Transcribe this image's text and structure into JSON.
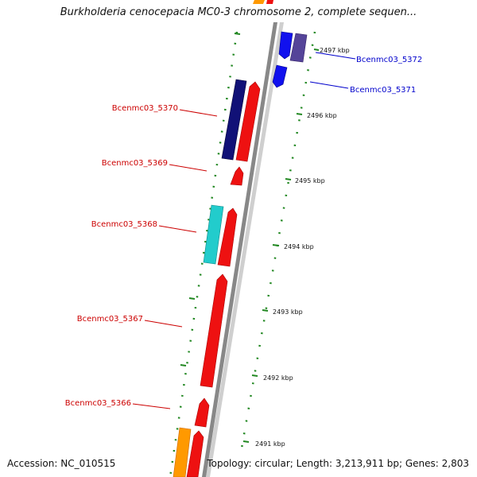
{
  "header": {
    "title": "Burkholderia cenocepacia MC0-3 chromosome 2, complete sequen..."
  },
  "footer": {
    "accession": "Accession: NC_010515",
    "topology": "Topology: circular; Length: 3,213,911 bp; Genes: 2,803"
  },
  "ticks": [
    "2497 kbp",
    "2496 kbp",
    "2495 kbp",
    "2494 kbp",
    "2493 kbp",
    "2492 kbp",
    "2491 kbp"
  ],
  "gene_labels": [
    {
      "id": "gene-label-5372",
      "text": "Bcenmc03_5372",
      "color": "#0000cc"
    },
    {
      "id": "gene-label-5371",
      "text": "Bcenmc03_5371",
      "color": "#0000cc"
    },
    {
      "id": "gene-label-5370",
      "text": "Bcenmc03_5370",
      "color": "#cc0000"
    },
    {
      "id": "gene-label-5369",
      "text": "Bcenmc03_5369",
      "color": "#cc0000"
    },
    {
      "id": "gene-label-5368",
      "text": "Bcenmc03_5368",
      "color": "#cc0000"
    },
    {
      "id": "gene-label-5367",
      "text": "Bcenmc03_5367",
      "color": "#cc0000"
    },
    {
      "id": "gene-label-5366",
      "text": "Bcenmc03_5366",
      "color": "#cc0000"
    }
  ],
  "colors": {
    "forward_gene": "#ee1111",
    "reverse_gene_blue": "#1111ee",
    "reverse_gene_navy": "#111177",
    "reverse_gene_slate": "#554499",
    "reverse_gene_cyan": "#22cccc",
    "orange_gene": "#ff9900",
    "tick_green": "#228822",
    "backbone": "#888888"
  }
}
